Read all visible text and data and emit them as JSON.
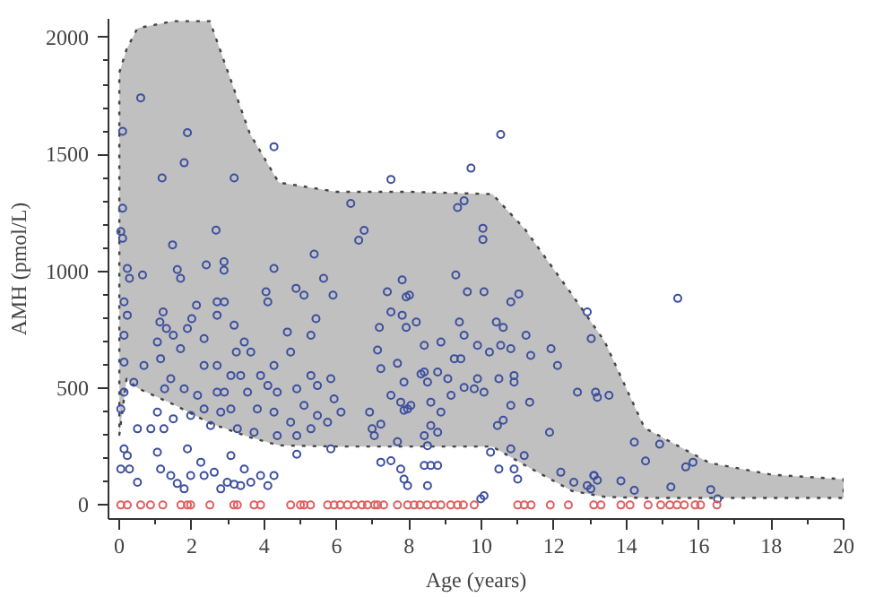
{
  "chart_data": {
    "type": "scatter",
    "xlabel": "Age (years)",
    "ylabel": "AMH (pmol/L)",
    "xlim": [
      -0.3,
      20
    ],
    "ylim": [
      -60,
      2080
    ],
    "xticks": [
      0,
      2,
      4,
      6,
      8,
      10,
      12,
      14,
      16,
      18,
      20
    ],
    "yticks": [
      0,
      500,
      1000,
      1500,
      2000
    ],
    "grid": false,
    "marker": "circle",
    "series": [
      {
        "type": "area",
        "color": "#c0c0c0",
        "line_style": "dotted",
        "marker": "none",
        "x": [
          0,
          0.2,
          0.5,
          1.5,
          2.5,
          3.6,
          4.4,
          6,
          8,
          10.3,
          11.2,
          12.5,
          13.4,
          14.5,
          16.3,
          18,
          20
        ],
        "values": [
          null,
          null,
          null,
          null,
          null,
          null,
          null,
          null,
          null,
          null,
          null,
          null,
          null,
          null,
          null,
          null,
          null
        ],
        "upper": [
          1850,
          1950,
          2040,
          2070,
          2070,
          1590,
          1380,
          1340,
          1340,
          1330,
          1180,
          900,
          700,
          330,
          180,
          130,
          110
        ],
        "lower": [
          300,
          540,
          500,
          430,
          350,
          290,
          255,
          250,
          250,
          250,
          170,
          60,
          35,
          30,
          30,
          30,
          30
        ]
      },
      {
        "type": "scatter",
        "color": "#3d4f9f",
        "x": [
          0.59,
          0.09,
          1.88,
          1.79,
          1.18,
          3.17,
          4.27,
          0.09,
          0.04,
          0.09,
          2.67,
          1.47,
          0.22,
          0.28,
          0.64,
          1.6,
          1.69,
          2.4,
          2.89,
          2.89,
          4.27,
          5.38,
          4.88,
          5.1,
          5.64,
          5.9,
          4.05,
          4.1,
          0.13,
          0.22,
          0.13,
          1.21,
          1.12,
          2.13,
          2.0,
          2.7,
          2.9,
          2.7,
          1.49,
          1.3,
          1.88,
          2.34,
          3.17,
          3.45,
          3.23,
          3.63,
          4.64,
          5.29,
          5.43,
          4.27,
          4.73,
          1.05,
          1.69,
          1.14,
          0.68,
          0.13,
          0.4,
          0.13,
          0.04,
          2.7,
          2.34,
          1.42,
          1.25,
          1.79,
          2.16,
          3.08,
          3.35,
          3.9,
          4.1,
          3.54,
          2.7,
          2.9,
          4.36,
          4.9,
          5.29,
          5.47,
          5.84,
          5.93,
          2.34,
          1.97,
          1.49,
          1.05,
          1.23,
          0.87,
          0.5,
          2.8,
          3.08,
          3.81,
          4.27,
          4.73,
          5.1,
          5.47,
          5.75,
          2.52,
          3.26,
          3.72,
          4.36,
          5.29,
          4.9,
          0.13,
          0.22,
          0.04,
          0.28,
          0.5,
          1.05,
          1.14,
          1.42,
          1.6,
          1.79,
          1.97,
          2.25,
          2.34,
          2.62,
          2.8,
          2.98,
          3.17,
          3.35,
          3.63,
          3.9,
          4.1,
          4.27,
          3.45,
          3.08,
          1.88,
          5.84,
          4.9,
          10.53,
          9.71,
          7.5,
          6.39,
          9.34,
          9.52,
          6.76,
          6.61,
          10.04,
          10.04,
          9.29,
          7.81,
          8.01,
          7.92,
          9.61,
          10.07,
          11.03,
          10.81,
          7.4,
          7.5,
          7.81,
          7.92,
          8.2,
          9.39,
          10.41,
          10.6,
          11.23,
          9.52,
          8.88,
          8.42,
          7.18,
          7.13,
          9.89,
          10.22,
          10.53,
          10.81,
          11.92,
          12.1,
          11.36,
          9.25,
          9.43,
          7.22,
          7.68,
          8.42,
          8.33,
          8.79,
          10.48,
          10.9,
          10.9,
          9.89,
          9.8,
          10.07,
          9.52,
          9.07,
          9.16,
          8.51,
          7.86,
          7.5,
          8.05,
          7.96,
          7.86,
          7.77,
          8.6,
          8.88,
          6.91,
          6.12,
          11.33,
          10.81,
          13.15,
          11.88,
          10.44,
          10.6,
          8.6,
          8.42,
          8.51,
          8.79,
          7.04,
          6.98,
          7.22,
          7.68,
          10.25,
          10.81,
          11.18,
          7.22,
          7.5,
          7.77,
          7.86,
          7.96,
          8.42,
          8.6,
          8.79,
          8.51,
          10.48,
          10.9,
          11.0,
          10.07,
          9.98,
          12.19,
          12.55,
          12.92,
          12.92,
          13.1,
          15.42,
          13.03,
          12.65,
          13.2,
          13.52,
          14.22,
          14.92,
          14.53,
          15.64,
          15.84,
          13.85,
          13.11,
          13.2,
          13.02,
          14.22,
          15.23,
          16.33,
          16.52
        ],
        "values": [
          1742,
          1599,
          1593,
          1464,
          1399,
          1399,
          1533,
          1270,
          1170,
          1141,
          1176,
          1113,
          1012,
          970,
          984,
          1007,
          970,
          1027,
          1041,
          1004,
          1012,
          1073,
          927,
          898,
          970,
          898,
          912,
          869,
          869,
          812,
          726,
          826,
          783,
          855,
          797,
          869,
          869,
          812,
          726,
          755,
          755,
          712,
          769,
          697,
          654,
          654,
          740,
          726,
          797,
          597,
          654,
          697,
          669,
          626,
          597,
          611,
          525,
          483,
          411,
          597,
          597,
          540,
          497,
          497,
          469,
          554,
          554,
          554,
          511,
          483,
          483,
          483,
          483,
          497,
          554,
          511,
          540,
          454,
          411,
          383,
          369,
          397,
          326,
          326,
          326,
          397,
          411,
          411,
          397,
          354,
          426,
          383,
          354,
          340,
          326,
          311,
          297,
          326,
          297,
          240,
          211,
          154,
          154,
          97,
          226,
          154,
          126,
          92,
          69,
          126,
          183,
          126,
          140,
          69,
          97,
          89,
          83,
          97,
          126,
          83,
          126,
          154,
          211,
          240,
          240,
          217,
          1585,
          1441,
          1393,
          1290,
          1273,
          1301,
          1175,
          1133,
          1184,
          1136,
          984,
          963,
          898,
          890,
          912,
          912,
          903,
          869,
          912,
          826,
          812,
          760,
          783,
          783,
          783,
          760,
          726,
          726,
          697,
          683,
          760,
          663,
          683,
          654,
          683,
          669,
          669,
          597,
          640,
          626,
          626,
          583,
          606,
          569,
          560,
          569,
          540,
          554,
          526,
          540,
          497,
          483,
          503,
          540,
          469,
          526,
          526,
          469,
          426,
          411,
          405,
          440,
          440,
          397,
          397,
          397,
          440,
          426,
          483,
          311,
          340,
          363,
          340,
          297,
          254,
          311,
          297,
          326,
          346,
          271,
          226,
          240,
          211,
          183,
          189,
          154,
          111,
          83,
          169,
          169,
          169,
          83,
          154,
          154,
          111,
          40,
          26,
          140,
          97,
          83,
          826,
          126,
          884,
          712,
          483,
          461,
          469,
          269,
          260,
          188,
          163,
          183,
          103,
          126,
          106,
          69,
          63,
          77,
          66,
          26
        ]
      },
      {
        "type": "scatter",
        "color": "#e06060",
        "x": [
          0.04,
          0.22,
          0.59,
          0.86,
          1.2,
          1.7,
          1.88,
          1.97,
          2.5,
          3.16,
          3.26,
          3.72,
          3.9,
          4.73,
          5.0,
          5.1,
          5.28,
          5.75,
          5.93,
          6.1,
          6.3,
          6.5,
          6.7,
          6.85,
          7.05,
          7.13,
          7.3,
          7.68,
          7.96,
          8.14,
          8.3,
          8.5,
          8.7,
          8.88,
          9.15,
          9.34,
          9.5,
          9.8,
          11.0,
          11.18,
          11.37,
          11.9,
          12.4,
          13.1,
          13.3,
          13.85,
          14.1,
          14.6,
          14.95,
          15.2,
          15.4,
          15.6,
          15.9,
          16.05,
          16.5
        ],
        "values": [
          0,
          0,
          0,
          0,
          0,
          0,
          0,
          0,
          0,
          0,
          0,
          0,
          0,
          0,
          0,
          0,
          0,
          0,
          0,
          0,
          0,
          0,
          0,
          0,
          0,
          0,
          0,
          0,
          0,
          0,
          0,
          0,
          0,
          0,
          0,
          0,
          0,
          0,
          0,
          0,
          0,
          0,
          0,
          0,
          0,
          0,
          0,
          0,
          0,
          0,
          0,
          0,
          0,
          0,
          0
        ]
      }
    ]
  }
}
